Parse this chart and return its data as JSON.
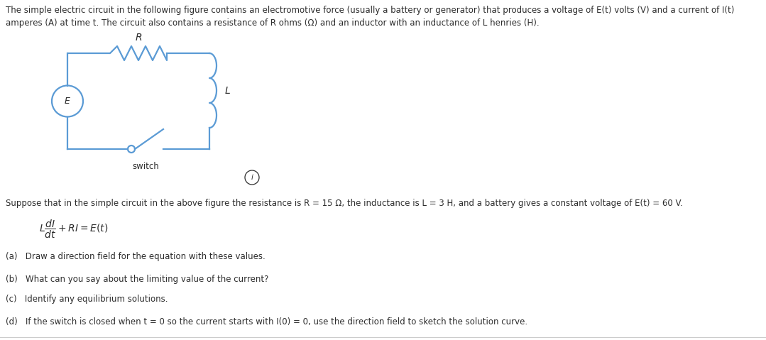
{
  "bg_color": "#ffffff",
  "text_color": "#2d2d2d",
  "circuit_color": "#5b9bd5",
  "intro_line1": "The simple electric circuit in the following figure contains an electromotive force (usually a battery or generator) that produces a voltage of E(t) volts (V) and a current of I(t)",
  "intro_line2": "amperes (A) at time t. The circuit also contains a resistance of R ohms (Ω) and an inductor with an inductance of L henries (H).",
  "suppose_text": "Suppose that in the simple circuit in the above figure the resistance is R = 15 Ω, the inductance is L = 3 H, and a battery gives a constant voltage of E(t) = 60 V.",
  "q_a": "(a)   Draw a direction field for the equation with these values.",
  "q_b": "(b)   What can you say about the limiting value of the current?",
  "q_c": "(c)   Identify any equilibrium solutions.",
  "q_d": "(d)   If the switch is closed when t = 0 so the current starts with I(0) = 0, use the direction field to sketch the solution curve.",
  "label_R": "R",
  "label_L": "L",
  "label_E": "E",
  "label_switch": "switch",
  "label_i": "i"
}
